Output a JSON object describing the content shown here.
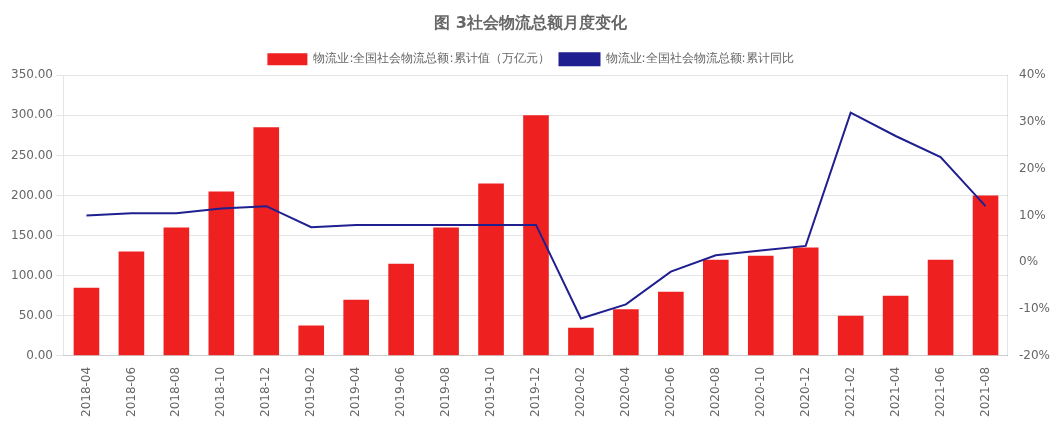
{
  "chart_data": {
    "type": "bar",
    "title": "图 3社会物流总额月度变化",
    "categories": [
      "2018-04",
      "2018-06",
      "2018-08",
      "2018-10",
      "2018-12",
      "2019-02",
      "2019-04",
      "2019-06",
      "2019-08",
      "2019-10",
      "2019-12",
      "2020-02",
      "2020-04",
      "2020-06",
      "2020-08",
      "2020-10",
      "2020-12",
      "2021-02",
      "2021-04",
      "2021-06",
      "2021-08"
    ],
    "series": [
      {
        "name": "物流业:全国社会物流总额:累计值（万亿元）",
        "color": "#EE2020",
        "type": "bar",
        "values": [
          85,
          130,
          160,
          205,
          285,
          38,
          70,
          115,
          160,
          215,
          300,
          35,
          58,
          80,
          120,
          125,
          135,
          50,
          75,
          120,
          200
        ]
      },
      {
        "name": "物流业:全国社会物流总额:累计同比",
        "color": "#1F1F8F",
        "type": "line",
        "axis": "y2",
        "values": [
          10.0,
          10.5,
          10.5,
          11.5,
          12.0,
          7.5,
          8.0,
          8.0,
          8.0,
          8.0,
          8.0,
          -12.0,
          -9.0,
          -2.0,
          1.5,
          2.5,
          3.5,
          32.0,
          27.0,
          22.5,
          12.0
        ]
      }
    ],
    "ylim": [
      0,
      350
    ],
    "yticks": [
      {
        "value": 0,
        "label": "0.00"
      },
      {
        "value": 50,
        "label": "50.00"
      },
      {
        "value": 100,
        "label": "100.00"
      },
      {
        "value": 150,
        "label": "150.00"
      },
      {
        "value": 200,
        "label": "200.00"
      },
      {
        "value": 250,
        "label": "250.00"
      },
      {
        "value": 300,
        "label": "300.00"
      },
      {
        "value": 350,
        "label": "350.00"
      }
    ],
    "y2lim": [
      -20,
      40
    ],
    "y2ticks": [
      {
        "value": -20,
        "label": "-20%"
      },
      {
        "value": -10,
        "label": "-10%"
      },
      {
        "value": 0,
        "label": "0%"
      },
      {
        "value": 10,
        "label": "10%"
      },
      {
        "value": 20,
        "label": "20%"
      },
      {
        "value": 30,
        "label": "30%"
      },
      {
        "value": 40,
        "label": "40%"
      }
    ],
    "grid": true,
    "legend": "top"
  }
}
